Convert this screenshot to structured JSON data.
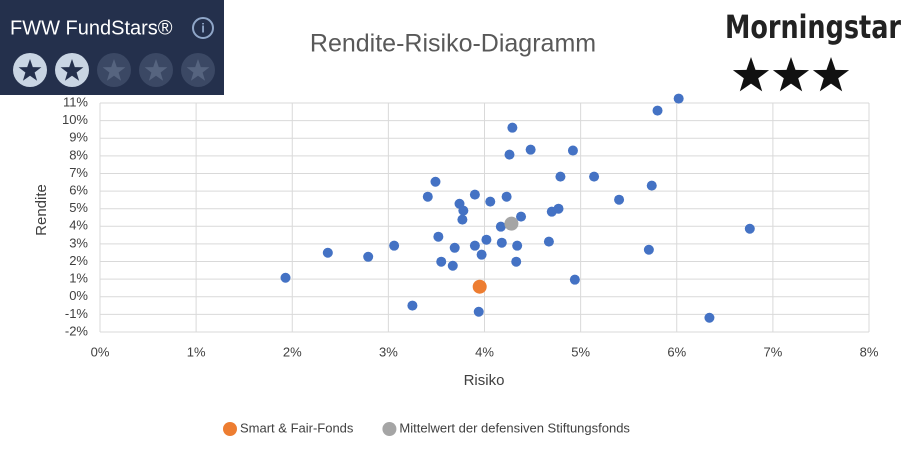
{
  "chart_data": {
    "type": "scatter",
    "title": "Rendite-Risiko-Diagramm",
    "x_label": "Risiko",
    "y_label": "Rendite",
    "xlim": [
      0,
      8
    ],
    "ylim": [
      -2,
      11
    ],
    "xticks": [
      {
        "value": 0,
        "label": "0%"
      },
      {
        "value": 1,
        "label": "1%"
      },
      {
        "value": 2,
        "label": "2%"
      },
      {
        "value": 3,
        "label": "3%"
      },
      {
        "value": 4,
        "label": "4%"
      },
      {
        "value": 5,
        "label": "5%"
      },
      {
        "value": 6,
        "label": "6%"
      },
      {
        "value": 7,
        "label": "7%"
      },
      {
        "value": 8,
        "label": "8%"
      }
    ],
    "yticks": [
      {
        "value": -2,
        "label": "-2%"
      },
      {
        "value": -1,
        "label": "-1%"
      },
      {
        "value": 0,
        "label": "0%"
      },
      {
        "value": 1,
        "label": "1%"
      },
      {
        "value": 2,
        "label": "2%"
      },
      {
        "value": 3,
        "label": "3%"
      },
      {
        "value": 4,
        "label": "4%"
      },
      {
        "value": 5,
        "label": "5%"
      },
      {
        "value": 6,
        "label": "6%"
      },
      {
        "value": 7,
        "label": "7%"
      },
      {
        "value": 8,
        "label": "8%"
      },
      {
        "value": 9,
        "label": "9%"
      },
      {
        "value": 10,
        "label": "10%"
      },
      {
        "value": 11,
        "label": "11%"
      }
    ],
    "grid": true,
    "legend": "bottom",
    "series": [
      {
        "color": "#4472c4",
        "x": [
          1.93,
          2.37,
          2.79,
          3.06,
          3.25,
          3.41,
          3.49,
          3.52,
          3.55,
          3.67,
          3.69,
          3.74,
          3.78,
          3.77,
          3.9,
          3.9,
          3.94,
          3.97,
          4.02,
          4.06,
          4.17,
          4.18,
          4.23,
          4.26,
          4.29,
          4.33,
          4.34,
          4.38,
          4.48,
          4.67,
          4.7,
          4.77,
          4.79,
          4.92,
          4.94,
          5.14,
          5.4,
          5.71,
          5.74,
          5.8,
          6.02,
          6.34,
          6.76
        ],
        "values": [
          1.08,
          2.5,
          2.27,
          2.9,
          -0.5,
          5.68,
          6.53,
          3.41,
          1.99,
          1.76,
          2.78,
          5.28,
          4.89,
          4.38,
          5.8,
          2.9,
          -0.85,
          2.39,
          3.24,
          5.4,
          3.98,
          3.07,
          5.68,
          8.07,
          9.6,
          1.99,
          2.9,
          4.55,
          8.35,
          3.13,
          4.83,
          5.0,
          6.82,
          8.3,
          0.97,
          6.82,
          5.51,
          2.67,
          6.31,
          10.57,
          11.25,
          -1.19,
          3.86
        ]
      },
      {
        "name": "Smart & Fair-Fonds",
        "color": "#ed7d31",
        "x": [
          3.95
        ],
        "values": [
          0.57
        ]
      },
      {
        "name": "Mittelwert der defensiven Stiftungsfonds",
        "color": "#a5a5a5",
        "x": [
          4.28
        ],
        "values": [
          4.15
        ]
      }
    ]
  },
  "badges": {
    "fww": {
      "title": "FWW FundStars®",
      "rating": 2,
      "max": 5
    },
    "morningstar": {
      "title": "Morningstar",
      "rating": 3
    }
  }
}
